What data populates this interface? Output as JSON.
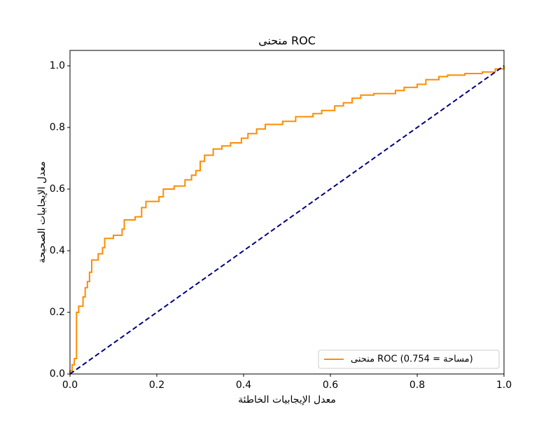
{
  "chart_data": {
    "type": "line",
    "title": "منحنى ROC",
    "xlabel": "معدل الإيجابيات الخاطئة",
    "ylabel": "معدل الإيجابيات الصحيحة",
    "xlim": [
      0,
      1
    ],
    "ylim": [
      0,
      1.05
    ],
    "xticks": [
      {
        "value": 0,
        "label": "0.0"
      },
      0.2,
      0.4,
      0.6,
      0.8,
      {
        "value": 1,
        "label": "1.0"
      }
    ],
    "yticks": [
      {
        "value": 0,
        "label": "0.0"
      },
      0.2,
      0.4,
      0.6,
      0.8,
      {
        "value": 1,
        "label": "1.0"
      }
    ],
    "legend": "lower right",
    "series": [
      {
        "name": "منحنى ROC (مساحة = 0.754)",
        "color": "#ff8c00",
        "dash": false,
        "x": [
          0,
          0,
          0.005,
          0.005,
          0.01,
          0.01,
          0.015,
          0.015,
          0.02,
          0.02,
          0.03,
          0.03,
          0.035,
          0.035,
          0.04,
          0.04,
          0.045,
          0.045,
          0.05,
          0.05,
          0.065,
          0.065,
          0.075,
          0.075,
          0.08,
          0.08,
          0.1,
          0.1,
          0.12,
          0.12,
          0.125,
          0.125,
          0.15,
          0.15,
          0.165,
          0.165,
          0.175,
          0.175,
          0.205,
          0.205,
          0.215,
          0.215,
          0.24,
          0.24,
          0.265,
          0.265,
          0.28,
          0.28,
          0.29,
          0.29,
          0.3,
          0.3,
          0.31,
          0.31,
          0.33,
          0.33,
          0.35,
          0.35,
          0.37,
          0.37,
          0.395,
          0.395,
          0.41,
          0.41,
          0.43,
          0.43,
          0.45,
          0.45,
          0.49,
          0.49,
          0.52,
          0.52,
          0.56,
          0.56,
          0.58,
          0.58,
          0.61,
          0.61,
          0.63,
          0.63,
          0.65,
          0.65,
          0.67,
          0.67,
          0.7,
          0.7,
          0.75,
          0.75,
          0.77,
          0.77,
          0.8,
          0.8,
          0.82,
          0.82,
          0.85,
          0.85,
          0.87,
          0.87,
          0.91,
          0.91,
          0.95,
          0.95,
          0.98,
          0.98,
          1,
          1
        ],
        "values": [
          0,
          0.01,
          0.01,
          0.03,
          0.03,
          0.05,
          0.05,
          0.2,
          0.2,
          0.22,
          0.22,
          0.25,
          0.25,
          0.28,
          0.28,
          0.3,
          0.3,
          0.33,
          0.33,
          0.37,
          0.37,
          0.39,
          0.39,
          0.41,
          0.41,
          0.44,
          0.44,
          0.45,
          0.45,
          0.47,
          0.47,
          0.5,
          0.5,
          0.51,
          0.51,
          0.54,
          0.54,
          0.56,
          0.56,
          0.575,
          0.575,
          0.6,
          0.6,
          0.61,
          0.61,
          0.63,
          0.63,
          0.645,
          0.645,
          0.66,
          0.66,
          0.69,
          0.69,
          0.71,
          0.71,
          0.73,
          0.73,
          0.74,
          0.74,
          0.75,
          0.75,
          0.765,
          0.765,
          0.78,
          0.78,
          0.795,
          0.795,
          0.81,
          0.81,
          0.82,
          0.82,
          0.835,
          0.835,
          0.845,
          0.845,
          0.855,
          0.855,
          0.87,
          0.87,
          0.88,
          0.88,
          0.895,
          0.895,
          0.905,
          0.905,
          0.91,
          0.91,
          0.92,
          0.92,
          0.93,
          0.93,
          0.94,
          0.94,
          0.955,
          0.955,
          0.965,
          0.965,
          0.97,
          0.97,
          0.975,
          0.975,
          0.98,
          0.98,
          0.99,
          0.99,
          1
        ]
      },
      {
        "color": "#000080",
        "dash": true,
        "x": [
          0,
          1
        ],
        "values": [
          0,
          1
        ]
      }
    ]
  }
}
